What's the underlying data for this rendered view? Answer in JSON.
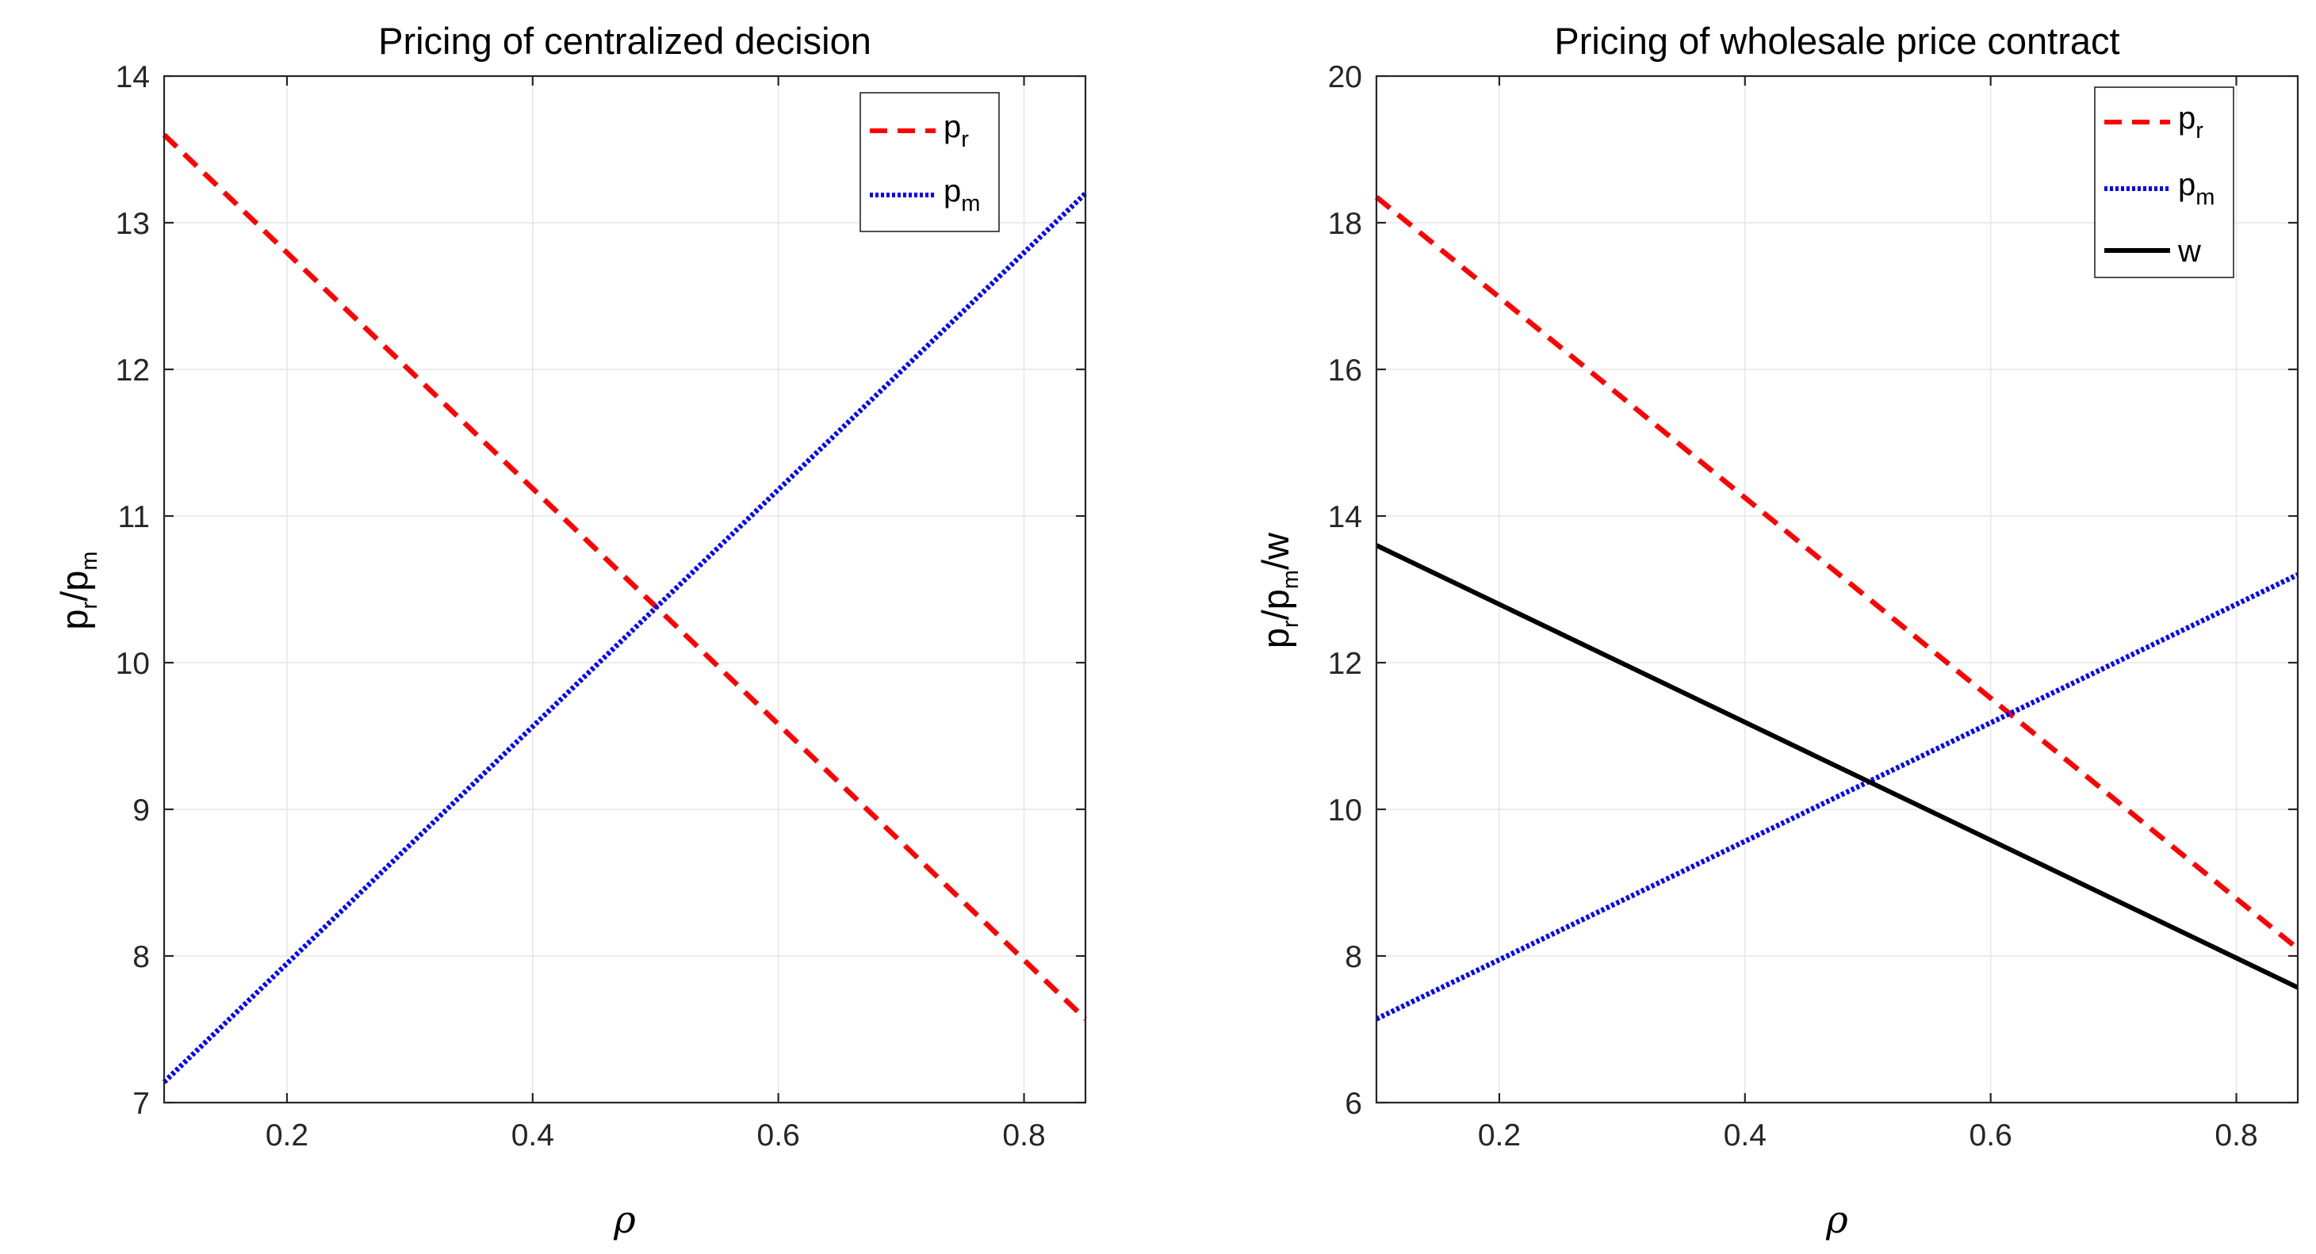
{
  "colors": {
    "pr": "#ff0000",
    "pm": "#0000ff",
    "w": "#000000"
  },
  "chart_data": [
    {
      "type": "line",
      "title": "Pricing of centralized decision",
      "xlabel": "ρ",
      "ylabel": {
        "base1": "p",
        "sub1": "r",
        "sep1": "/",
        "base2": "p",
        "sub2": "m",
        "rest": ""
      },
      "xlim": [
        0.1,
        0.85
      ],
      "ylim": [
        7,
        14
      ],
      "xticks": [
        0.2,
        0.4,
        0.6,
        0.8
      ],
      "xtick_labels": [
        "0.2",
        "0.4",
        "0.6",
        "0.8"
      ],
      "yticks": [
        7,
        8,
        9,
        10,
        11,
        12,
        13,
        14
      ],
      "ytick_labels": [
        "7",
        "8",
        "9",
        "10",
        "11",
        "12",
        "13",
        "14"
      ],
      "grid": true,
      "legend_position": "top-right",
      "series": [
        {
          "key": "pr",
          "label_base": "p",
          "label_sub": "r",
          "style": "dashed",
          "color_key": "pr",
          "x": [
            0.1,
            0.85
          ],
          "y": [
            13.6,
            7.57
          ]
        },
        {
          "key": "pm",
          "label_base": "p",
          "label_sub": "m",
          "style": "dotted",
          "color_key": "pm",
          "x": [
            0.1,
            0.85
          ],
          "y": [
            7.14,
            13.2
          ]
        }
      ]
    },
    {
      "type": "line",
      "title": "Pricing of wholesale price contract",
      "xlabel": "ρ",
      "ylabel": {
        "base1": "p",
        "sub1": "r",
        "sep1": "/",
        "base2": "p",
        "sub2": "m",
        "rest": "/w"
      },
      "xlim": [
        0.1,
        0.85
      ],
      "ylim": [
        6,
        20
      ],
      "xticks": [
        0.2,
        0.4,
        0.6,
        0.8
      ],
      "xtick_labels": [
        "0.2",
        "0.4",
        "0.6",
        "0.8"
      ],
      "yticks": [
        6,
        8,
        10,
        12,
        14,
        16,
        18,
        20
      ],
      "ytick_labels": [
        "6",
        "8",
        "10",
        "12",
        "14",
        "16",
        "18",
        "20"
      ],
      "grid": true,
      "legend_position": "top-right",
      "series": [
        {
          "key": "pr",
          "label_base": "p",
          "label_sub": "r",
          "style": "dashed",
          "color_key": "pr",
          "x": [
            0.1,
            0.85
          ],
          "y": [
            18.35,
            8.1
          ]
        },
        {
          "key": "pm",
          "label_base": "p",
          "label_sub": "m",
          "style": "dotted",
          "color_key": "pm",
          "x": [
            0.1,
            0.85
          ],
          "y": [
            7.14,
            13.2
          ]
        },
        {
          "key": "w",
          "label_base": "w",
          "label_sub": "",
          "style": "solid",
          "color_key": "w",
          "x": [
            0.1,
            0.85
          ],
          "y": [
            13.6,
            7.57
          ]
        }
      ]
    }
  ]
}
